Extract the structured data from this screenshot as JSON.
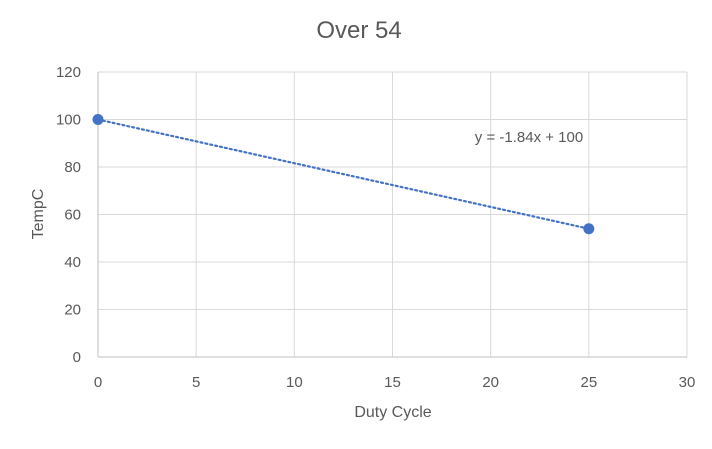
{
  "chart_data": {
    "type": "scatter",
    "title": "Over 54",
    "xlabel": "Duty Cycle",
    "ylabel": "TempC",
    "xlim": [
      0,
      30
    ],
    "ylim": [
      0,
      120
    ],
    "xticks": [
      "0",
      "5",
      "10",
      "15",
      "20",
      "25",
      "30"
    ],
    "yticks": [
      "0",
      "20",
      "40",
      "60",
      "80",
      "100",
      "120"
    ],
    "grid": true,
    "legend": "none",
    "series": [
      {
        "x": [
          0,
          25
        ],
        "y": [
          100,
          54
        ],
        "color": "#4472C4"
      }
    ],
    "trendline": {
      "type": "linear",
      "slope": -1.84,
      "intercept": 100,
      "style": "dotted",
      "color": "#4472C4",
      "equation_label": "y = -1.84x + 100"
    }
  }
}
